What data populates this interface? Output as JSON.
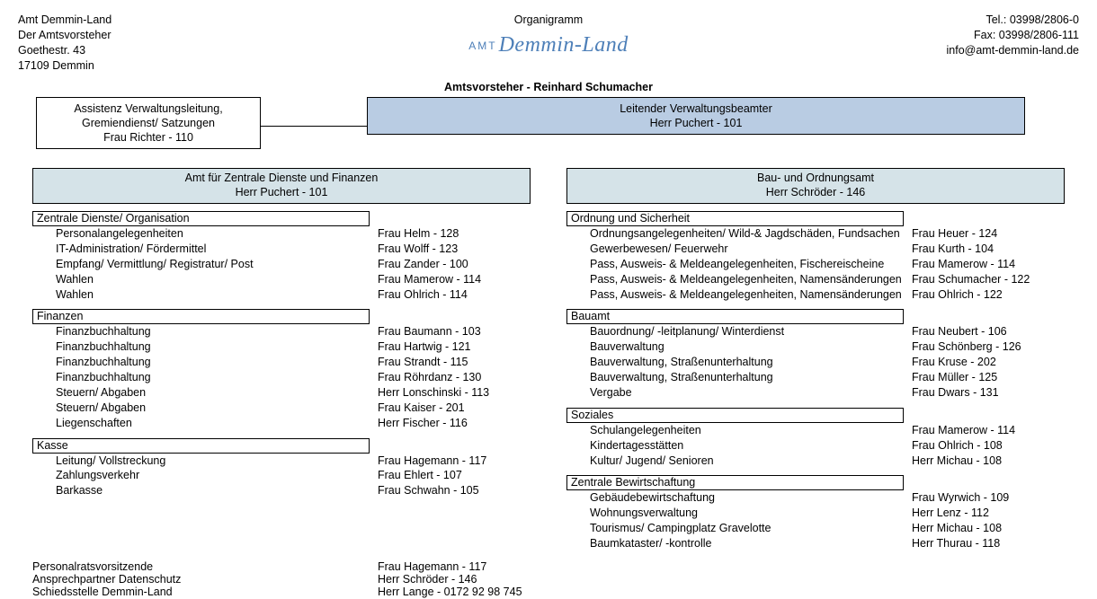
{
  "header": {
    "left": {
      "org": "Amt Demmin-Land",
      "role": "Der Amtsvorsteher",
      "street": "Goethestr. 43",
      "city": "17109 Demmin"
    },
    "center": {
      "title": "Organigramm",
      "logo_prefix": "AMT",
      "logo_main": "Demmin-Land"
    },
    "right": {
      "tel": "Tel.: 03998/2806-0",
      "fax": "Fax: 03998/2806-111",
      "mail": "info@amt-demmin-land.de"
    }
  },
  "chief": "Amtsvorsteher - Reinhard Schumacher",
  "assist": {
    "l1": "Assistenz Verwaltungsleitung,",
    "l2": "Gremiendienst/ Satzungen",
    "l3": "Frau Richter - 110"
  },
  "leader": {
    "l1": "Leitender Verwaltungsbeamter",
    "l2": "Herr Puchert - 101"
  },
  "depts": [
    {
      "title": "Amt für Zentrale Dienste und Finanzen",
      "head": "Herr Puchert - 101",
      "sections": [
        {
          "title": "Zentrale Dienste/ Organisation",
          "items": [
            {
              "n": "Personalangelegenheiten",
              "p": "Frau Helm - 128"
            },
            {
              "n": "IT-Administration/ Fördermittel",
              "p": "Frau Wolff - 123"
            },
            {
              "n": "Empfang/ Vermittlung/ Registratur/ Post",
              "p": "Frau Zander - 100"
            },
            {
              "n": "Wahlen",
              "p": "Frau Mamerow - 114"
            },
            {
              "n": "Wahlen",
              "p": "Frau Ohlrich - 114"
            }
          ]
        },
        {
          "title": "Finanzen",
          "items": [
            {
              "n": "Finanzbuchhaltung",
              "p": "Frau Baumann - 103"
            },
            {
              "n": "Finanzbuchhaltung",
              "p": "Frau Hartwig - 121"
            },
            {
              "n": "Finanzbuchhaltung",
              "p": "Frau Strandt - 115"
            },
            {
              "n": "Finanzbuchhaltung",
              "p": "Frau Röhrdanz - 130"
            },
            {
              "n": "Steuern/ Abgaben",
              "p": "Herr Lonschinski - 113"
            },
            {
              "n": "Steuern/ Abgaben",
              "p": "Frau Kaiser - 201"
            },
            {
              "n": "Liegenschaften",
              "p": "Herr Fischer - 116"
            }
          ]
        },
        {
          "title": "Kasse",
          "items": [
            {
              "n": "Leitung/ Vollstreckung",
              "p": "Frau Hagemann - 117"
            },
            {
              "n": "Zahlungsverkehr",
              "p": "Frau Ehlert - 107"
            },
            {
              "n": "Barkasse",
              "p": "Frau Schwahn - 105"
            }
          ]
        }
      ]
    },
    {
      "title": "Bau- und Ordnungsamt",
      "head": "Herr Schröder - 146",
      "sections": [
        {
          "title": "Ordnung und Sicherheit",
          "items": [
            {
              "n": "Ordnungsangelegenheiten/ Wild-& Jagdschäden, Fundsachen",
              "p": "Frau Heuer - 124"
            },
            {
              "n": "Gewerbewesen/ Feuerwehr",
              "p": "Frau Kurth - 104"
            },
            {
              "n": "Pass, Ausweis- & Meldeangelegenheiten, Fischereischeine",
              "p": "Frau Mamerow - 114"
            },
            {
              "n": "Pass, Ausweis- & Meldeangelegenheiten, Namensänderungen",
              "p": "Frau Schumacher - 122"
            },
            {
              "n": "Pass, Ausweis- & Meldeangelegenheiten, Namensänderungen",
              "p": "Frau Ohlrich - 122"
            }
          ]
        },
        {
          "title": "Bauamt",
          "items": [
            {
              "n": "Bauordnung/ -leitplanung/ Winterdienst",
              "p": "Frau Neubert - 106"
            },
            {
              "n": "Bauverwaltung",
              "p": "Frau Schönberg - 126"
            },
            {
              "n": "Bauverwaltung, Straßenunterhaltung",
              "p": "Frau Kruse - 202"
            },
            {
              "n": "Bauverwaltung, Straßenunterhaltung",
              "p": "Frau Müller - 125"
            },
            {
              "n": "Vergabe",
              "p": "Frau Dwars - 131"
            }
          ]
        },
        {
          "title": "Soziales",
          "items": [
            {
              "n": "Schulangelegenheiten",
              "p": "Frau Mamerow - 114"
            },
            {
              "n": "Kindertagesstätten",
              "p": "Frau Ohlrich - 108"
            },
            {
              "n": "Kultur/ Jugend/ Senioren",
              "p": "Herr Michau - 108"
            }
          ]
        },
        {
          "title": "Zentrale Bewirtschaftung",
          "items": [
            {
              "n": "Gebäudebewirtschaftung",
              "p": "Frau Wyrwich - 109"
            },
            {
              "n": "Wohnungsverwaltung",
              "p": "Herr Lenz - 112"
            },
            {
              "n": "Tourismus/ Campingplatz Gravelotte",
              "p": "Herr Michau - 108"
            },
            {
              "n": "Baumkataster/ -kontrolle",
              "p": "Herr Thurau - 118"
            }
          ]
        }
      ]
    }
  ],
  "footer": [
    {
      "n": "Personalratsvorsitzende",
      "p": "Frau Hagemann - 117"
    },
    {
      "n": "Ansprechpartner Datenschutz",
      "p": "Herr Schröder - 146"
    },
    {
      "n": "Schiedsstelle Demmin-Land",
      "p": "Herr Lange - 0172 92 98 745"
    }
  ]
}
